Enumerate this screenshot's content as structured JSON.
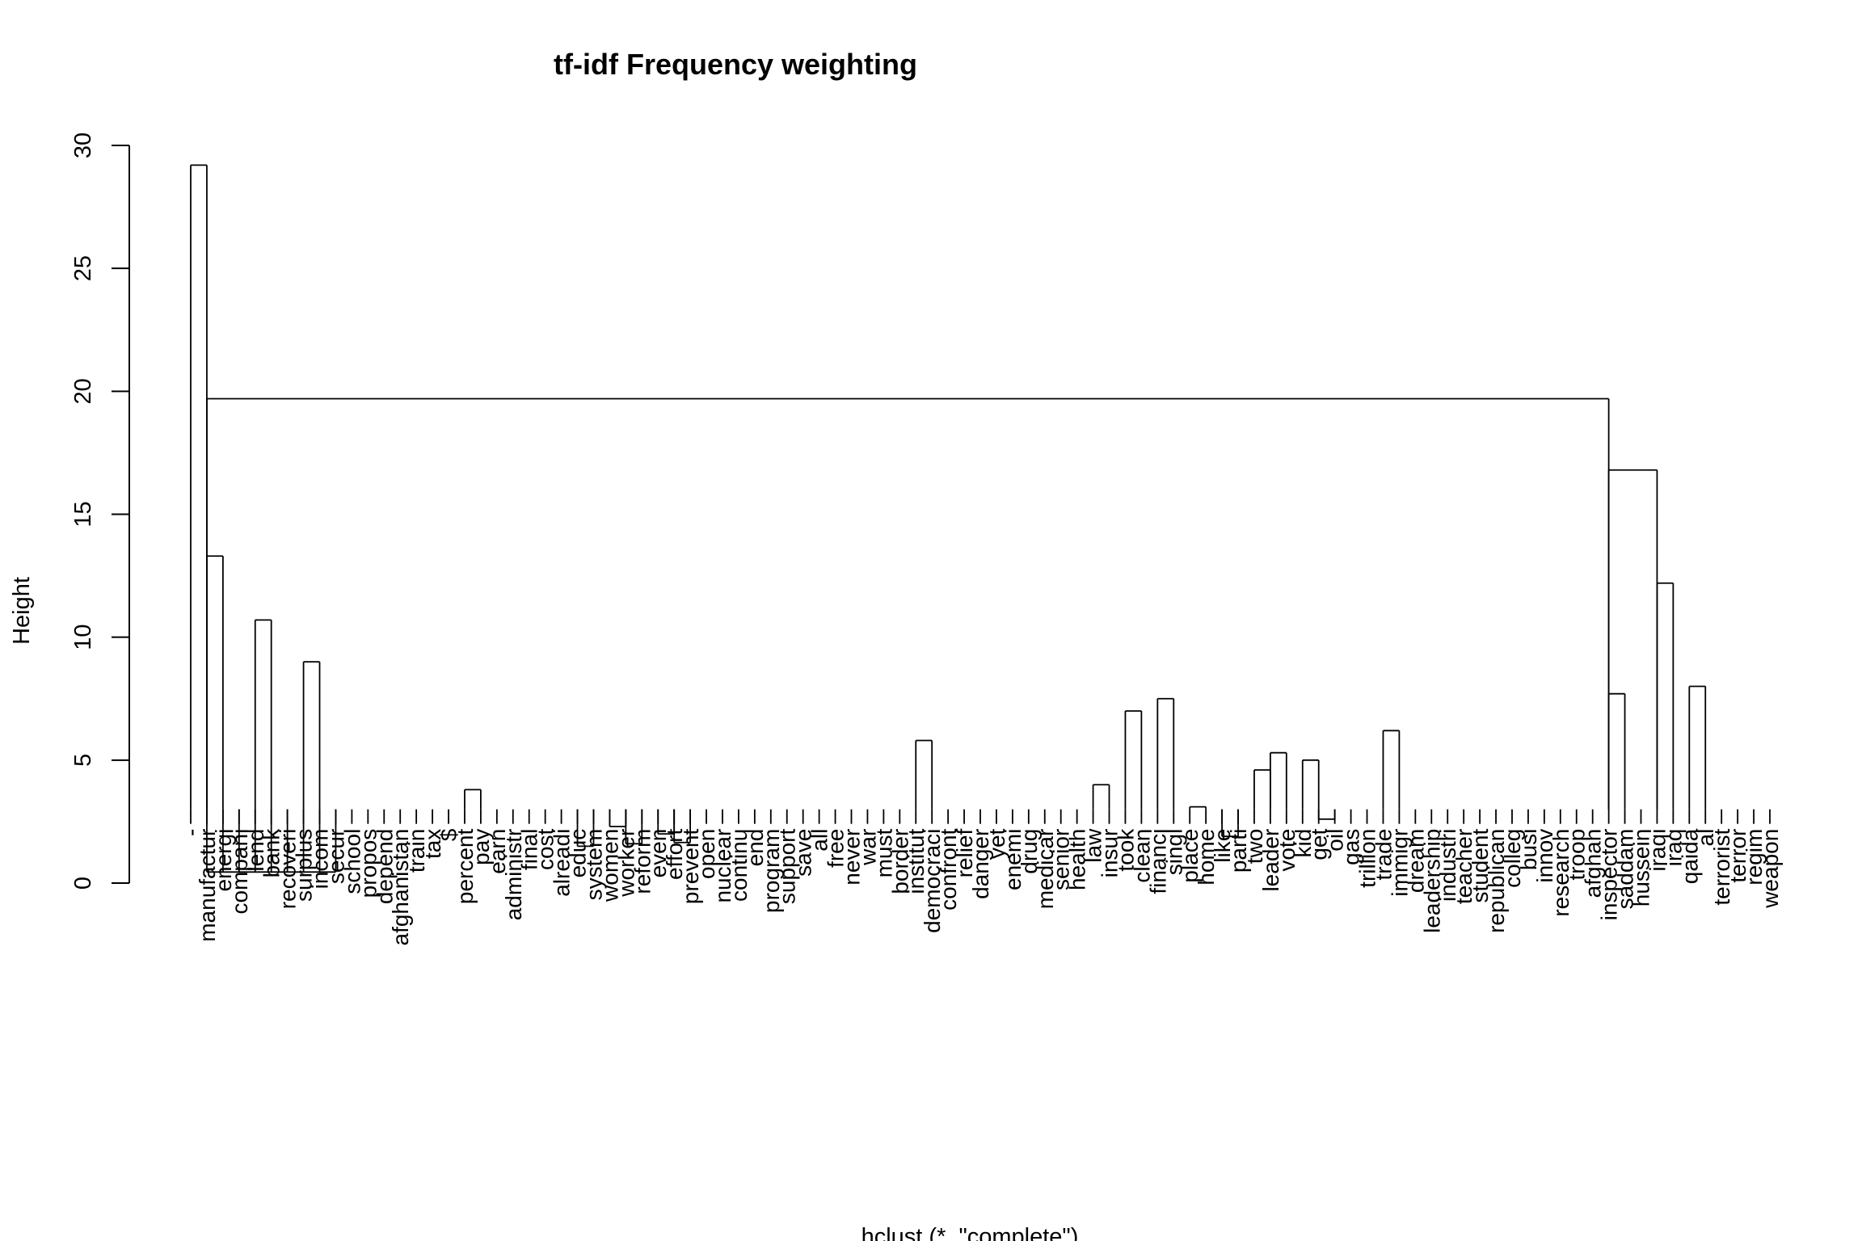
{
  "chart_data": {
    "type": "dendrogram",
    "title": "tf-idf Frequency weighting",
    "xlabel": "hclust (*, \"complete\")",
    "ylabel": "Height",
    "ylim": [
      0,
      30
    ],
    "yticks": [
      "0",
      "5",
      "10",
      "15",
      "20",
      "25",
      "30"
    ],
    "leaves": [
      "-",
      "manufactur",
      "energi",
      "compani",
      "lend",
      "bank",
      "recoveri",
      "surplus",
      "incom",
      "secur",
      "school",
      "propos",
      "depend",
      "afghanistan",
      "train",
      "tax",
      "$",
      "percent",
      "pay",
      "earn",
      "administr",
      "final",
      "cost",
      "alreadi",
      "educ",
      "system",
      "women",
      "worker",
      "reform",
      "even",
      "effort",
      "prevent",
      "open",
      "nuclear",
      "continu",
      "end",
      "program",
      "support",
      "save",
      "all",
      "free",
      "never",
      "war",
      "must",
      "border",
      "institut",
      "democraci",
      "confront",
      "relief",
      "danger",
      "yet",
      "enemi",
      "drug",
      "medicar",
      "senior",
      "health",
      "law",
      "insur",
      "took",
      "clean",
      "financi",
      "singl",
      "place",
      "home",
      "like",
      "parti",
      "two",
      "leader",
      "vote",
      "kid",
      "get",
      "oil",
      "gas",
      "trillion",
      "trade",
      "immigr",
      "dream",
      "leadership",
      "industri",
      "teacher",
      "student",
      "republican",
      "colleg",
      "busi",
      "innov",
      "research",
      "troop",
      "afghan",
      "inspector",
      "saddam",
      "hussein",
      "iraqi",
      "iraq",
      "qaida",
      "al",
      "terrorist",
      "terror",
      "regim",
      "weapon"
    ],
    "merges": [
      [
        0.45,
        "manufactur",
        "energi",
        "compani",
        "lend",
        "bank",
        "recoveri",
        "surplus",
        "incom",
        "secur"
      ],
      [
        1.5,
        "educ",
        "system"
      ],
      [
        1.6,
        "worker",
        "reform"
      ],
      [
        1.65,
        "effort",
        "prevent"
      ],
      [
        1.9,
        "like",
        "parti"
      ],
      [
        2.0,
        "even",
        "effort"
      ],
      [
        2.3,
        "women",
        "worker"
      ],
      [
        2.6,
        "get",
        "oil"
      ],
      [
        3.1,
        "place",
        "home"
      ],
      [
        3.8,
        "percent",
        "pay"
      ],
      [
        4.0,
        "law",
        "insur"
      ],
      [
        4.6,
        "two",
        "leader"
      ],
      [
        5.0,
        "kid",
        "get"
      ],
      [
        5.3,
        "leader",
        "vote"
      ],
      [
        5.8,
        "institut",
        "democraci"
      ],
      [
        6.2,
        "trade",
        "immigr"
      ],
      [
        7.0,
        "took",
        "clean"
      ],
      [
        7.5,
        "financi",
        "singl"
      ],
      [
        7.7,
        "inspector",
        "saddam"
      ],
      [
        8.0,
        "qaida",
        "al"
      ],
      [
        9.0,
        "surplus",
        "incom"
      ],
      [
        10.7,
        "lend",
        "bank"
      ],
      [
        12.2,
        "iraqi",
        "iraq"
      ],
      [
        13.3,
        "manufactur",
        "energi"
      ],
      [
        16.8,
        "inspector",
        "iraqi"
      ],
      [
        19.7,
        "manufactur",
        "inspector"
      ],
      [
        29.2,
        "-",
        "manufactur"
      ]
    ]
  }
}
